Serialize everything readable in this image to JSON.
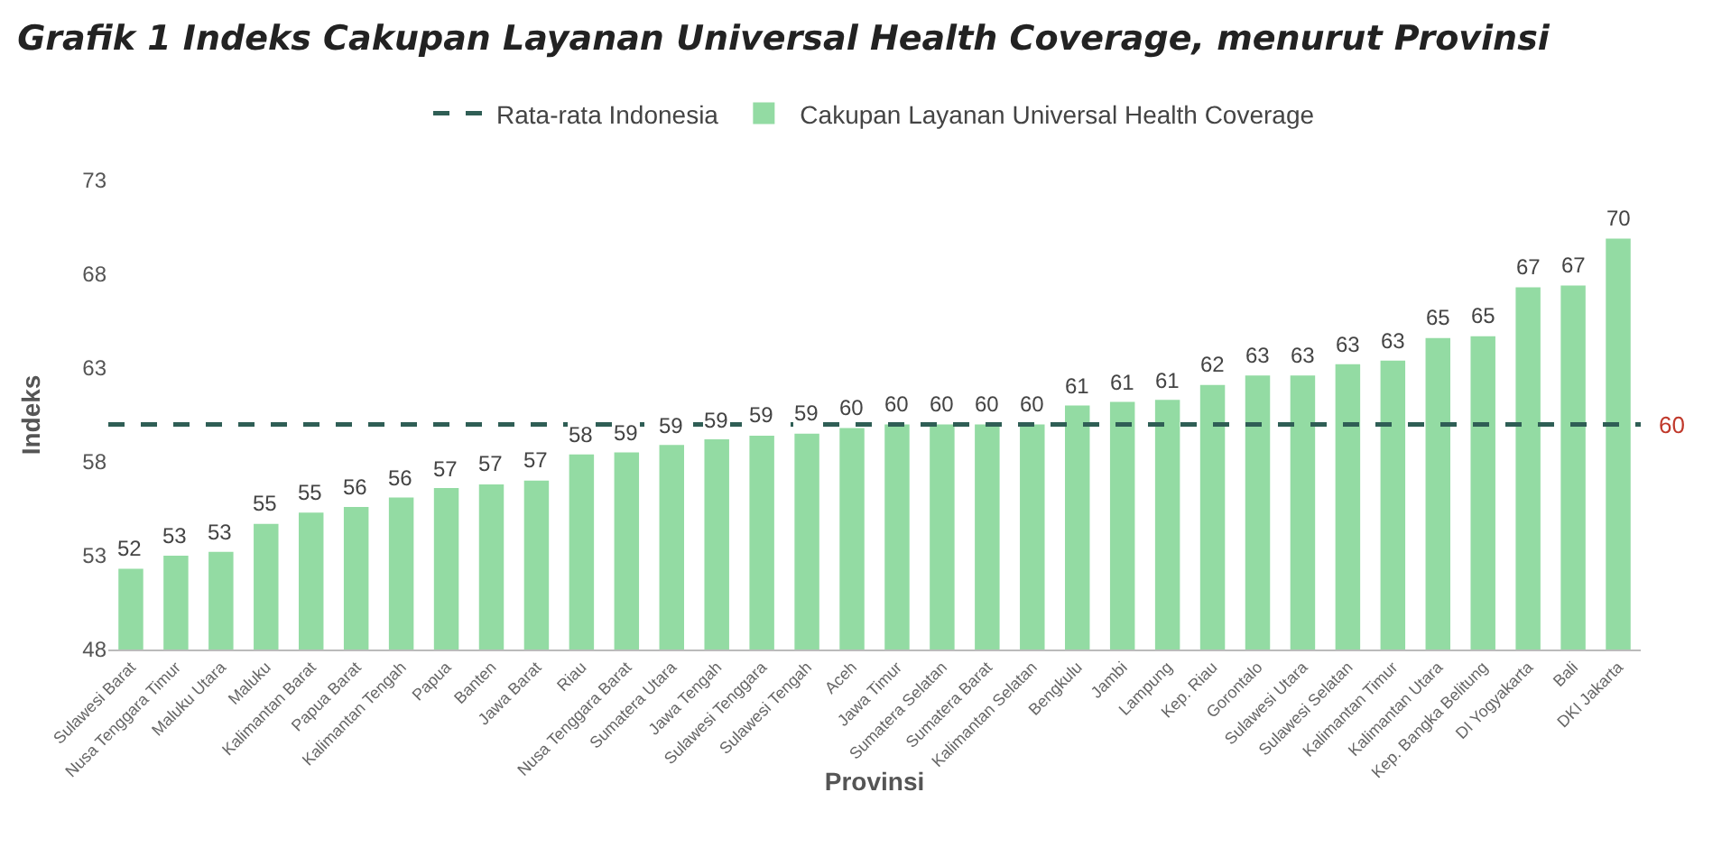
{
  "chart_data": {
    "type": "bar",
    "title": "Grafik 1 Indeks Cakupan Layanan Universal Health Coverage, menurut Provinsi",
    "xlabel": "Provinsi",
    "ylabel": "Indeks",
    "categories": [
      "Sulawesi Barat",
      "Nusa Tenggara Timur",
      "Maluku Utara",
      "Maluku",
      "Kalimantan Barat",
      "Papua Barat",
      "Kalimantan Tengah",
      "Papua",
      "Banten",
      "Jawa Barat",
      "Riau",
      "Nusa Tenggara Barat",
      "Sumatera Utara",
      "Jawa Tengah",
      "Sulawesi Tenggara",
      "Sulawesi Tengah",
      "Aceh",
      "Jawa Timur",
      "Sumatera Selatan",
      "Sumatera Barat",
      "Kalimantan Selatan",
      "Bengkulu",
      "Jambi",
      "Lampung",
      "Kep. Riau",
      "Gorontalo",
      "Sulawesi Utara",
      "Sulawesi Selatan",
      "Kalimantan Timur",
      "Kalimantan Utara",
      "Kep. Bangka Belitung",
      "DI Yogyakarta",
      "Bali",
      "DKI Jakarta"
    ],
    "series": [
      {
        "name": "Cakupan Layanan Universal Health Coverage",
        "color": "#93dba3",
        "values": [
          52.3,
          53.0,
          53.2,
          54.7,
          55.3,
          55.6,
          56.1,
          56.6,
          56.8,
          57.0,
          58.4,
          58.5,
          58.9,
          59.2,
          59.4,
          59.5,
          59.8,
          60.0,
          60.0,
          60.0,
          60.0,
          61.0,
          61.2,
          61.3,
          62.1,
          62.6,
          62.6,
          63.2,
          63.4,
          64.6,
          64.7,
          67.3,
          67.4,
          69.9
        ],
        "value_labels": [
          "52",
          "53",
          "53",
          "55",
          "55",
          "56",
          "56",
          "57",
          "57",
          "57",
          "58",
          "59",
          "59",
          "59",
          "59",
          "59",
          "60",
          "60",
          "60",
          "60",
          "60",
          "61",
          "61",
          "61",
          "62",
          "63",
          "63",
          "63",
          "63",
          "65",
          "65",
          "67",
          "67",
          "70"
        ]
      }
    ],
    "ylim": [
      48,
      73
    ],
    "yticks": [
      48,
      53,
      58,
      63,
      68,
      73
    ],
    "grid": false,
    "legend": "top",
    "ref_lines": [
      {
        "axis": "y",
        "value": 60,
        "label": "Rata-rata Indonesia",
        "color": "#2f5e55",
        "line_style": "dashed"
      }
    ],
    "annotations": [
      "60"
    ]
  }
}
